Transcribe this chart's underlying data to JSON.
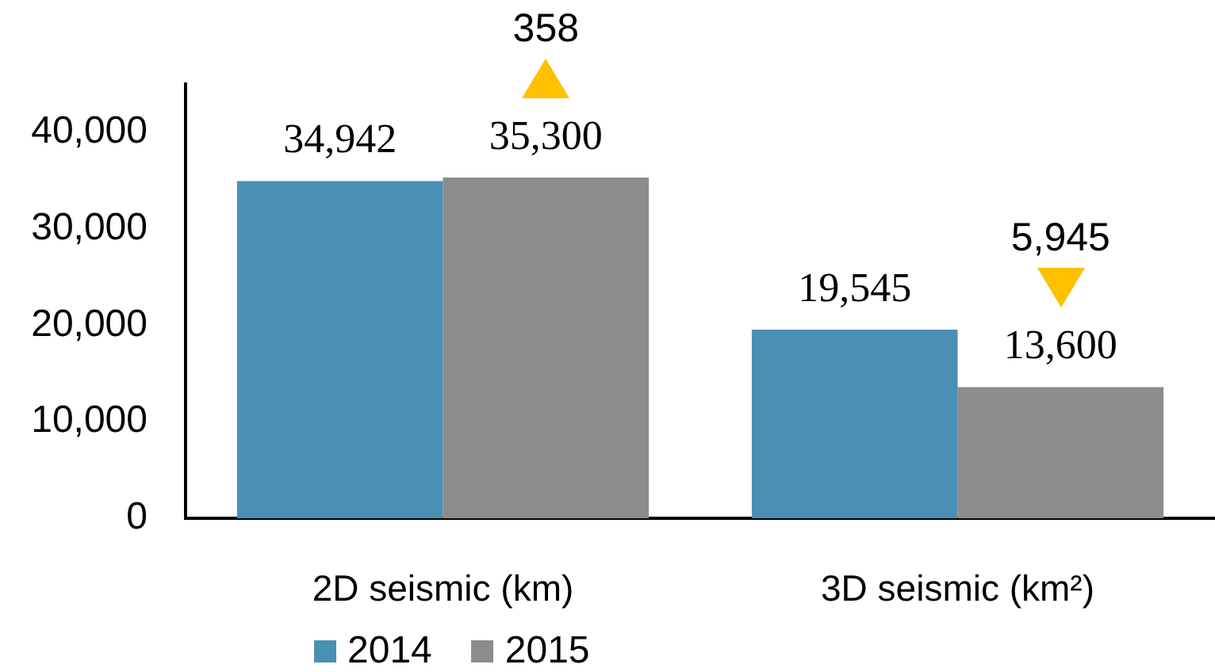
{
  "chart_data": {
    "type": "bar",
    "categories": [
      "2D seismic (km)",
      "3D seismic (km²)"
    ],
    "series": [
      {
        "name": "2014",
        "color": "#4a90b4",
        "values": [
          34942,
          19545
        ],
        "value_labels": [
          "34,942",
          "19,545"
        ]
      },
      {
        "name": "2015",
        "color": "#8c8c8c",
        "values": [
          35300,
          13600
        ],
        "value_labels": [
          "35,300",
          "13,600"
        ]
      }
    ],
    "ylim": [
      0,
      45000
    ],
    "yticks": [
      0,
      {
        "value": 10000,
        "label": "10,000"
      },
      {
        "value": 20000,
        "label": "20,000"
      },
      {
        "value": 30000,
        "label": "30,000"
      },
      {
        "value": 40000,
        "label": "40,000"
      }
    ],
    "annotations": [
      "358",
      "5,945"
    ],
    "legend": "bottom"
  }
}
